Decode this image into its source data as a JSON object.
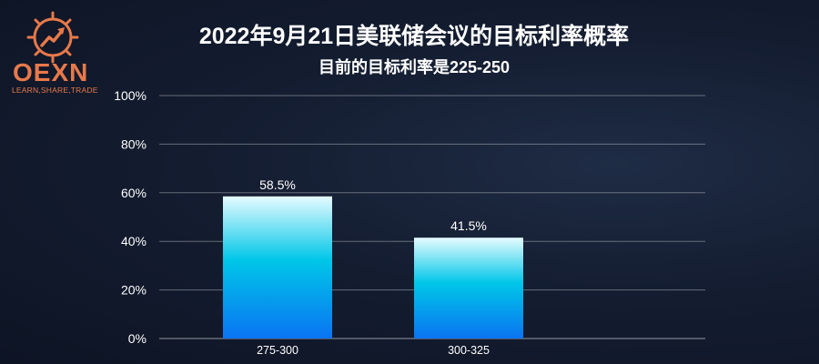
{
  "logo": {
    "name": "OEXN",
    "tagline": "LEARN,SHARE,TRADE",
    "color": "#e8794a"
  },
  "title": "2022年9月21日美联储会议的目标利率概率",
  "subtitle": "目前的目标利率是225-250",
  "chart_data": {
    "type": "bar",
    "title": "2022年9月21日美联储会议的目标利率概率",
    "subtitle": "目前的目标利率是225-250",
    "categories": [
      "275-300",
      "300-325"
    ],
    "values": [
      58.5,
      41.5
    ],
    "value_labels": [
      "58.5%",
      "41.5%"
    ],
    "xlabel": "",
    "ylabel": "",
    "ylim": [
      0,
      100
    ],
    "yticks": [
      0,
      20,
      40,
      60,
      80,
      100
    ],
    "ytick_labels": [
      "0%",
      "20%",
      "40%",
      "60%",
      "80%",
      "100%"
    ],
    "grid": true,
    "legend": "none",
    "bar_gradient": [
      "#e6fbff",
      "#00c6e8",
      "#0a74f2"
    ],
    "grid_color": "#ffffff"
  }
}
